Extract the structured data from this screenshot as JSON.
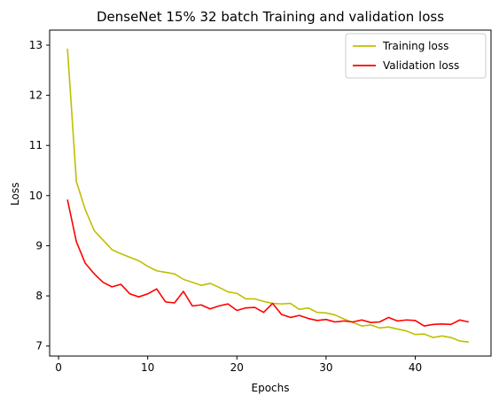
{
  "chart_data": {
    "type": "line",
    "title": "DenseNet 15% 32 batch Training and validation loss",
    "xlabel": "Epochs",
    "ylabel": "Loss",
    "xlim": [
      -1,
      48.5
    ],
    "ylim": [
      6.8,
      13.3
    ],
    "x_ticks": [
      0,
      10,
      20,
      30,
      40
    ],
    "y_ticks": [
      7,
      8,
      9,
      10,
      11,
      12,
      13
    ],
    "grid": false,
    "legend_position": "top-right",
    "x": [
      1,
      2,
      3,
      4,
      5,
      6,
      7,
      8,
      9,
      10,
      11,
      12,
      13,
      14,
      15,
      16,
      17,
      18,
      19,
      20,
      21,
      22,
      23,
      24,
      25,
      26,
      27,
      28,
      29,
      30,
      31,
      32,
      33,
      34,
      35,
      36,
      37,
      38,
      39,
      40,
      41,
      42,
      43,
      44,
      45,
      46
    ],
    "series": [
      {
        "name": "Training loss",
        "color": "#bfbf00",
        "values": [
          12.93,
          10.28,
          9.72,
          9.3,
          9.11,
          8.92,
          8.84,
          8.77,
          8.7,
          8.59,
          8.5,
          8.47,
          8.44,
          8.33,
          8.27,
          8.21,
          8.25,
          8.17,
          8.08,
          8.05,
          7.94,
          7.94,
          7.89,
          7.85,
          7.84,
          7.85,
          7.73,
          7.76,
          7.67,
          7.66,
          7.62,
          7.54,
          7.47,
          7.4,
          7.42,
          7.36,
          7.38,
          7.34,
          7.3,
          7.23,
          7.24,
          7.17,
          7.2,
          7.17,
          7.1,
          7.08
        ]
      },
      {
        "name": "Validation loss",
        "color": "#ff0000",
        "values": [
          9.92,
          9.08,
          8.65,
          8.44,
          8.27,
          8.18,
          8.23,
          8.04,
          7.98,
          8.04,
          8.14,
          7.88,
          7.86,
          8.09,
          7.8,
          7.82,
          7.74,
          7.8,
          7.84,
          7.71,
          7.76,
          7.77,
          7.67,
          7.85,
          7.63,
          7.57,
          7.61,
          7.55,
          7.51,
          7.53,
          7.48,
          7.5,
          7.48,
          7.52,
          7.47,
          7.48,
          7.57,
          7.5,
          7.52,
          7.51,
          7.4,
          7.43,
          7.44,
          7.43,
          7.52,
          7.48
        ]
      }
    ]
  }
}
